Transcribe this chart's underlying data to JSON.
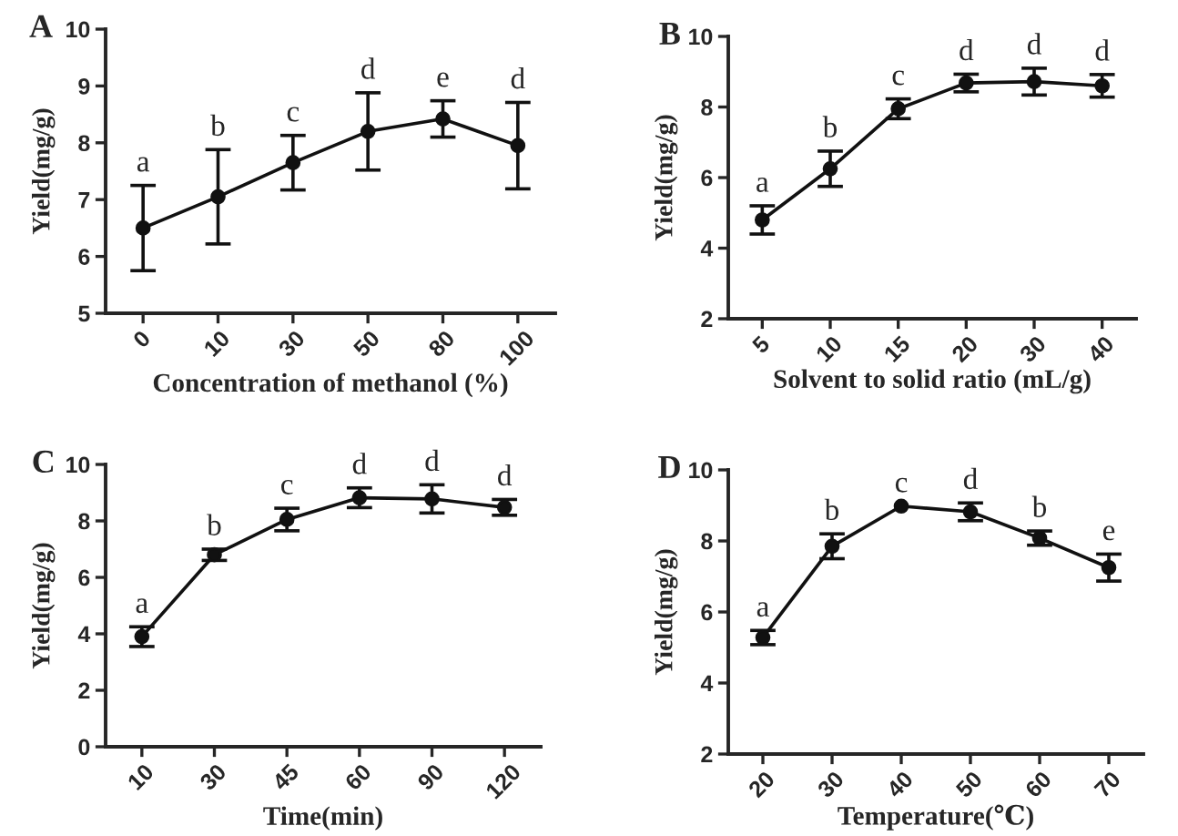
{
  "chart_data": [
    {
      "type": "line",
      "title": "A",
      "xlabel": "Concentration of methanol (%)",
      "ylabel": "Yield(mg/g)",
      "categories": [
        "0",
        "10",
        "30",
        "50",
        "80",
        "100"
      ],
      "marker": "circle",
      "line_style": "solid",
      "grid": false,
      "series": [
        {
          "color": "#111111",
          "values": [
            6.5,
            7.05,
            7.65,
            8.2,
            8.42,
            7.95
          ],
          "errors": [
            0.75,
            0.83,
            0.48,
            0.68,
            0.32,
            0.76
          ]
        }
      ],
      "ylim": [
        5,
        10
      ],
      "yticks": [
        5,
        6,
        7,
        8,
        9,
        10
      ],
      "annotations": [
        {
          "text": "a",
          "x": "0",
          "y": 7.25
        },
        {
          "text": "b",
          "x": "10",
          "y": 7.88
        },
        {
          "text": "c",
          "x": "30",
          "y": 8.13
        },
        {
          "text": "d",
          "x": "50",
          "y": 8.88
        },
        {
          "text": "e",
          "x": "80",
          "y": 8.74
        },
        {
          "text": "d",
          "x": "100",
          "y": 8.71
        }
      ]
    },
    {
      "type": "line",
      "title": "B",
      "xlabel": "Solvent to solid ratio (mL/g)",
      "ylabel": "Yield(mg/g)",
      "categories": [
        "5",
        "10",
        "15",
        "20",
        "30",
        "40"
      ],
      "marker": "circle",
      "line_style": "solid",
      "grid": false,
      "series": [
        {
          "color": "#111111",
          "values": [
            4.8,
            6.25,
            7.95,
            8.68,
            8.72,
            8.6
          ],
          "errors": [
            0.4,
            0.5,
            0.28,
            0.25,
            0.38,
            0.32
          ]
        }
      ],
      "ylim": [
        2,
        10
      ],
      "yticks": [
        2,
        4,
        6,
        8,
        10
      ],
      "annotations": [
        {
          "text": "a",
          "x": "5",
          "y": 5.2
        },
        {
          "text": "b",
          "x": "10",
          "y": 6.75
        },
        {
          "text": "c",
          "x": "15",
          "y": 8.23
        },
        {
          "text": "d",
          "x": "20",
          "y": 8.93
        },
        {
          "text": "d",
          "x": "30",
          "y": 9.1
        },
        {
          "text": "d",
          "x": "40",
          "y": 8.92
        }
      ]
    },
    {
      "type": "line",
      "title": "C",
      "xlabel": "Time(min)",
      "ylabel": "Yield(mg/g)",
      "categories": [
        "10",
        "30",
        "45",
        "60",
        "90",
        "120"
      ],
      "marker": "circle",
      "line_style": "solid",
      "grid": false,
      "series": [
        {
          "color": "#111111",
          "values": [
            3.9,
            6.8,
            8.05,
            8.82,
            8.78,
            8.48
          ],
          "errors": [
            0.35,
            0.2,
            0.4,
            0.35,
            0.5,
            0.28
          ]
        }
      ],
      "ylim": [
        0,
        10
      ],
      "yticks": [
        0,
        2,
        4,
        6,
        8,
        10
      ],
      "annotations": [
        {
          "text": "a",
          "x": "10",
          "y": 4.25
        },
        {
          "text": "b",
          "x": "30",
          "y": 7.0
        },
        {
          "text": "c",
          "x": "45",
          "y": 8.45
        },
        {
          "text": "d",
          "x": "60",
          "y": 9.17
        },
        {
          "text": "d",
          "x": "90",
          "y": 9.28
        },
        {
          "text": "d",
          "x": "120",
          "y": 8.76
        }
      ]
    },
    {
      "type": "line",
      "title": "D",
      "xlabel": "Temperature(℃)",
      "ylabel": "Yield(mg/g)",
      "categories": [
        "20",
        "30",
        "40",
        "50",
        "60",
        "70"
      ],
      "marker": "circle",
      "line_style": "solid",
      "grid": false,
      "series": [
        {
          "color": "#111111",
          "values": [
            5.28,
            7.85,
            8.98,
            8.82,
            8.08,
            7.25
          ],
          "errors": [
            0.2,
            0.35,
            null,
            0.25,
            0.2,
            0.38
          ]
        }
      ],
      "ylim": [
        2,
        10
      ],
      "yticks": [
        2,
        4,
        6,
        8,
        10
      ],
      "annotations": [
        {
          "text": "a",
          "x": "20",
          "y": 5.48
        },
        {
          "text": "b",
          "x": "30",
          "y": 8.2
        },
        {
          "text": "c",
          "x": "40",
          "y": 8.98
        },
        {
          "text": "d",
          "x": "50",
          "y": 9.07
        },
        {
          "text": "b",
          "x": "60",
          "y": 8.28
        },
        {
          "text": "e",
          "x": "70",
          "y": 7.63
        }
      ]
    }
  ]
}
